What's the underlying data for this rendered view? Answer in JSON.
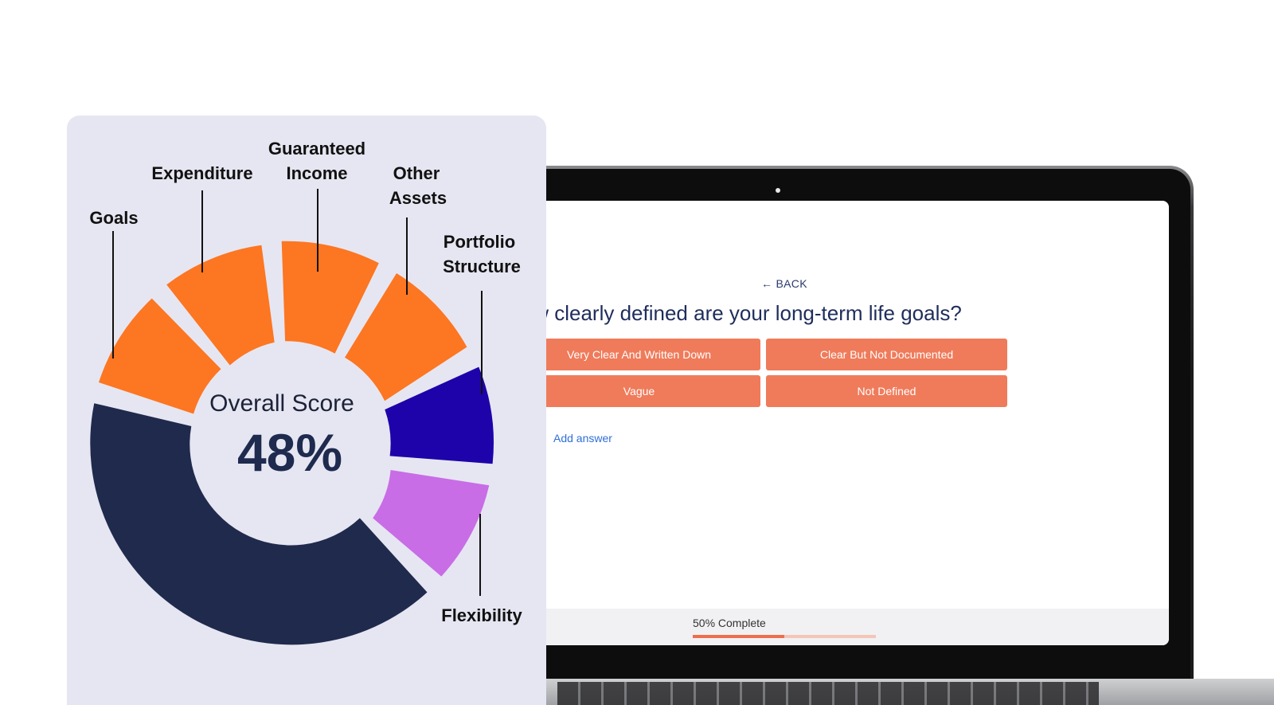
{
  "screen": {
    "back_label": "BACK",
    "question": "low clearly defined are your long-term life goals?",
    "answers": [
      "Very Clear And Written Down",
      "Clear But Not Documented",
      "Vague",
      "Not Defined"
    ],
    "add_answer_label": "Add answer",
    "progress_label": "50% Complete",
    "progress_value": 0.5,
    "accent_color": "#ef7b5b"
  },
  "score_card": {
    "center_title": "Overall Score",
    "center_value": "48%",
    "labels": {
      "goals": "Goals",
      "expenditure": "Expenditure",
      "guaranteed_income_1": "Guaranteed",
      "guaranteed_income_2": "Income",
      "other_assets_1": "Other",
      "other_assets_2": "Assets",
      "portfolio_structure_1": "Portfolio",
      "portfolio_structure_2": "Structure",
      "flexibility": "Flexibility"
    },
    "colors": {
      "orange": "#fd7621",
      "blue": "#1d03a9",
      "purple": "#c86de6",
      "navy": "#1f2a4d",
      "background": "#e6e6f2"
    }
  }
}
